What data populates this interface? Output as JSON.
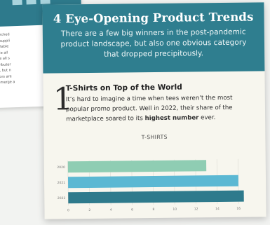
{
  "back_page": {
    "lines": [
      "onched",
      "r suppli",
      "ailable",
      "ble all",
      "xe all s",
      "tributer",
      "s, but n",
      "tors are",
      "emerge a"
    ]
  },
  "header": {
    "title": "4 Eye-Opening Product Trends",
    "subtitle": "There are a few big winners in the post-pandemic product landscape, but also one obvious category that dropped precipitously."
  },
  "section": {
    "number": "1",
    "title": "T-Shirts on Top of the World",
    "body_plain": "It’s hard to imagine a time when tees weren’t the most popular promo product. Well in 2022, their share of the marketplace soared to its ",
    "body_bold": "highest number",
    "body_end": " ever."
  },
  "chart_data": {
    "type": "bar",
    "orientation": "horizontal",
    "title": "T-SHIRTS",
    "categories": [
      "2020",
      "2021",
      "2022"
    ],
    "values": [
      13,
      16,
      16.5
    ],
    "xlim": [
      0,
      17
    ],
    "x_ticks": [
      0,
      2,
      4,
      6,
      8,
      10,
      12,
      14,
      16
    ],
    "grid": true,
    "colors": [
      "#8fcdb3",
      "#5bb8d3",
      "#2e7a8c"
    ]
  }
}
